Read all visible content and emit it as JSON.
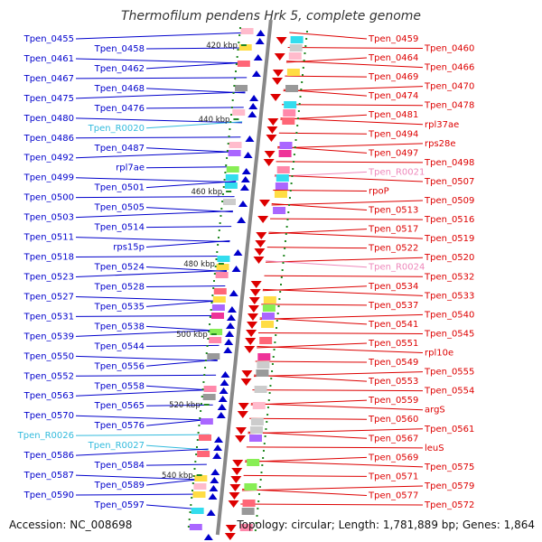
{
  "title": "Thermofilum pendens Hrk 5, complete genome",
  "footer": {
    "accession": "Accession: NC_008698",
    "summary": "Topology: circular; Length: 1,781,889 bp; Genes: 1,864"
  },
  "colors": {
    "plus_strand": "#0000cc",
    "minus_strand": "#dd0000",
    "plus_rna": "#33bbdd",
    "minus_rna": "#ee88bb",
    "backbone": "#888888",
    "tick": "#228822"
  },
  "kbp_marks": [
    {
      "label": "420 kbp",
      "kbp": 420
    },
    {
      "label": "440 kbp",
      "kbp": 440
    },
    {
      "label": "460 kbp",
      "kbp": 460
    },
    {
      "label": "480 kbp",
      "kbp": 480
    },
    {
      "label": "500 kbp",
      "kbp": 500
    },
    {
      "label": "520 kbp",
      "kbp": 520
    },
    {
      "label": "540 kbp",
      "kbp": 540
    }
  ],
  "left_labels": [
    {
      "text": "Tpen_0455",
      "kind": "gene"
    },
    {
      "text": "Tpen_0458",
      "kind": "gene"
    },
    {
      "text": "Tpen_0461",
      "kind": "gene"
    },
    {
      "text": "Tpen_0462",
      "kind": "gene"
    },
    {
      "text": "Tpen_0467",
      "kind": "gene"
    },
    {
      "text": "Tpen_0468",
      "kind": "gene"
    },
    {
      "text": "Tpen_0475",
      "kind": "gene"
    },
    {
      "text": "Tpen_0476",
      "kind": "gene"
    },
    {
      "text": "Tpen_0480",
      "kind": "gene"
    },
    {
      "text": "Tpen_R0020",
      "kind": "rna"
    },
    {
      "text": "Tpen_0486",
      "kind": "gene"
    },
    {
      "text": "Tpen_0487",
      "kind": "gene"
    },
    {
      "text": "Tpen_0492",
      "kind": "gene"
    },
    {
      "text": "rpl7ae",
      "kind": "gene"
    },
    {
      "text": "Tpen_0499",
      "kind": "gene"
    },
    {
      "text": "Tpen_0501",
      "kind": "gene"
    },
    {
      "text": "Tpen_0500",
      "kind": "gene"
    },
    {
      "text": "Tpen_0505",
      "kind": "gene"
    },
    {
      "text": "Tpen_0503",
      "kind": "gene"
    },
    {
      "text": "Tpen_0514",
      "kind": "gene"
    },
    {
      "text": "Tpen_0511",
      "kind": "gene"
    },
    {
      "text": "rps15p",
      "kind": "gene"
    },
    {
      "text": "Tpen_0518",
      "kind": "gene"
    },
    {
      "text": "Tpen_0524",
      "kind": "gene"
    },
    {
      "text": "Tpen_0523",
      "kind": "gene"
    },
    {
      "text": "Tpen_0528",
      "kind": "gene"
    },
    {
      "text": "Tpen_0527",
      "kind": "gene"
    },
    {
      "text": "Tpen_0535",
      "kind": "gene"
    },
    {
      "text": "Tpen_0531",
      "kind": "gene"
    },
    {
      "text": "Tpen_0538",
      "kind": "gene"
    },
    {
      "text": "Tpen_0539",
      "kind": "gene"
    },
    {
      "text": "Tpen_0544",
      "kind": "gene"
    },
    {
      "text": "Tpen_0550",
      "kind": "gene"
    },
    {
      "text": "Tpen_0556",
      "kind": "gene"
    },
    {
      "text": "Tpen_0552",
      "kind": "gene"
    },
    {
      "text": "Tpen_0558",
      "kind": "gene"
    },
    {
      "text": "Tpen_0563",
      "kind": "gene"
    },
    {
      "text": "Tpen_0565",
      "kind": "gene"
    },
    {
      "text": "Tpen_0570",
      "kind": "gene"
    },
    {
      "text": "Tpen_0576",
      "kind": "gene"
    },
    {
      "text": "Tpen_R0026",
      "kind": "rna"
    },
    {
      "text": "Tpen_R0027",
      "kind": "rna"
    },
    {
      "text": "Tpen_0586",
      "kind": "gene"
    },
    {
      "text": "Tpen_0584",
      "kind": "gene"
    },
    {
      "text": "Tpen_0587",
      "kind": "gene"
    },
    {
      "text": "Tpen_0589",
      "kind": "gene"
    },
    {
      "text": "Tpen_0590",
      "kind": "gene"
    },
    {
      "text": "Tpen_0597",
      "kind": "gene"
    }
  ],
  "right_labels": [
    {
      "text": "Tpen_0459",
      "kind": "gene"
    },
    {
      "text": "Tpen_0460",
      "kind": "gene"
    },
    {
      "text": "Tpen_0464",
      "kind": "gene"
    },
    {
      "text": "Tpen_0466",
      "kind": "gene"
    },
    {
      "text": "Tpen_0469",
      "kind": "gene"
    },
    {
      "text": "Tpen_0470",
      "kind": "gene"
    },
    {
      "text": "Tpen_0474",
      "kind": "gene"
    },
    {
      "text": "Tpen_0478",
      "kind": "gene"
    },
    {
      "text": "Tpen_0481",
      "kind": "gene"
    },
    {
      "text": "rpl37ae",
      "kind": "gene"
    },
    {
      "text": "Tpen_0494",
      "kind": "gene"
    },
    {
      "text": "rps28e",
      "kind": "gene"
    },
    {
      "text": "Tpen_0497",
      "kind": "gene"
    },
    {
      "text": "Tpen_0498",
      "kind": "gene"
    },
    {
      "text": "Tpen_R0021",
      "kind": "rna"
    },
    {
      "text": "Tpen_0507",
      "kind": "gene"
    },
    {
      "text": "rpoP",
      "kind": "gene"
    },
    {
      "text": "Tpen_0509",
      "kind": "gene"
    },
    {
      "text": "Tpen_0513",
      "kind": "gene"
    },
    {
      "text": "Tpen_0516",
      "kind": "gene"
    },
    {
      "text": "Tpen_0517",
      "kind": "gene"
    },
    {
      "text": "Tpen_0519",
      "kind": "gene"
    },
    {
      "text": "Tpen_0522",
      "kind": "gene"
    },
    {
      "text": "Tpen_0520",
      "kind": "gene"
    },
    {
      "text": "Tpen_R0024",
      "kind": "rna"
    },
    {
      "text": "Tpen_0532",
      "kind": "gene"
    },
    {
      "text": "Tpen_0534",
      "kind": "gene"
    },
    {
      "text": "Tpen_0533",
      "kind": "gene"
    },
    {
      "text": "Tpen_0537",
      "kind": "gene"
    },
    {
      "text": "Tpen_0540",
      "kind": "gene"
    },
    {
      "text": "Tpen_0541",
      "kind": "gene"
    },
    {
      "text": "Tpen_0545",
      "kind": "gene"
    },
    {
      "text": "Tpen_0551",
      "kind": "gene"
    },
    {
      "text": "rpl10e",
      "kind": "gene"
    },
    {
      "text": "Tpen_0549",
      "kind": "gene"
    },
    {
      "text": "Tpen_0555",
      "kind": "gene"
    },
    {
      "text": "Tpen_0553",
      "kind": "gene"
    },
    {
      "text": "Tpen_0554",
      "kind": "gene"
    },
    {
      "text": "Tpen_0559",
      "kind": "gene"
    },
    {
      "text": "argS",
      "kind": "gene"
    },
    {
      "text": "Tpen_0560",
      "kind": "gene"
    },
    {
      "text": "Tpen_0561",
      "kind": "gene"
    },
    {
      "text": "Tpen_0567",
      "kind": "gene"
    },
    {
      "text": "leuS",
      "kind": "gene"
    },
    {
      "text": "Tpen_0569",
      "kind": "gene"
    },
    {
      "text": "Tpen_0575",
      "kind": "gene"
    },
    {
      "text": "Tpen_0571",
      "kind": "gene"
    },
    {
      "text": "Tpen_0579",
      "kind": "gene"
    },
    {
      "text": "Tpen_0577",
      "kind": "gene"
    },
    {
      "text": "Tpen_0572",
      "kind": "gene"
    }
  ]
}
